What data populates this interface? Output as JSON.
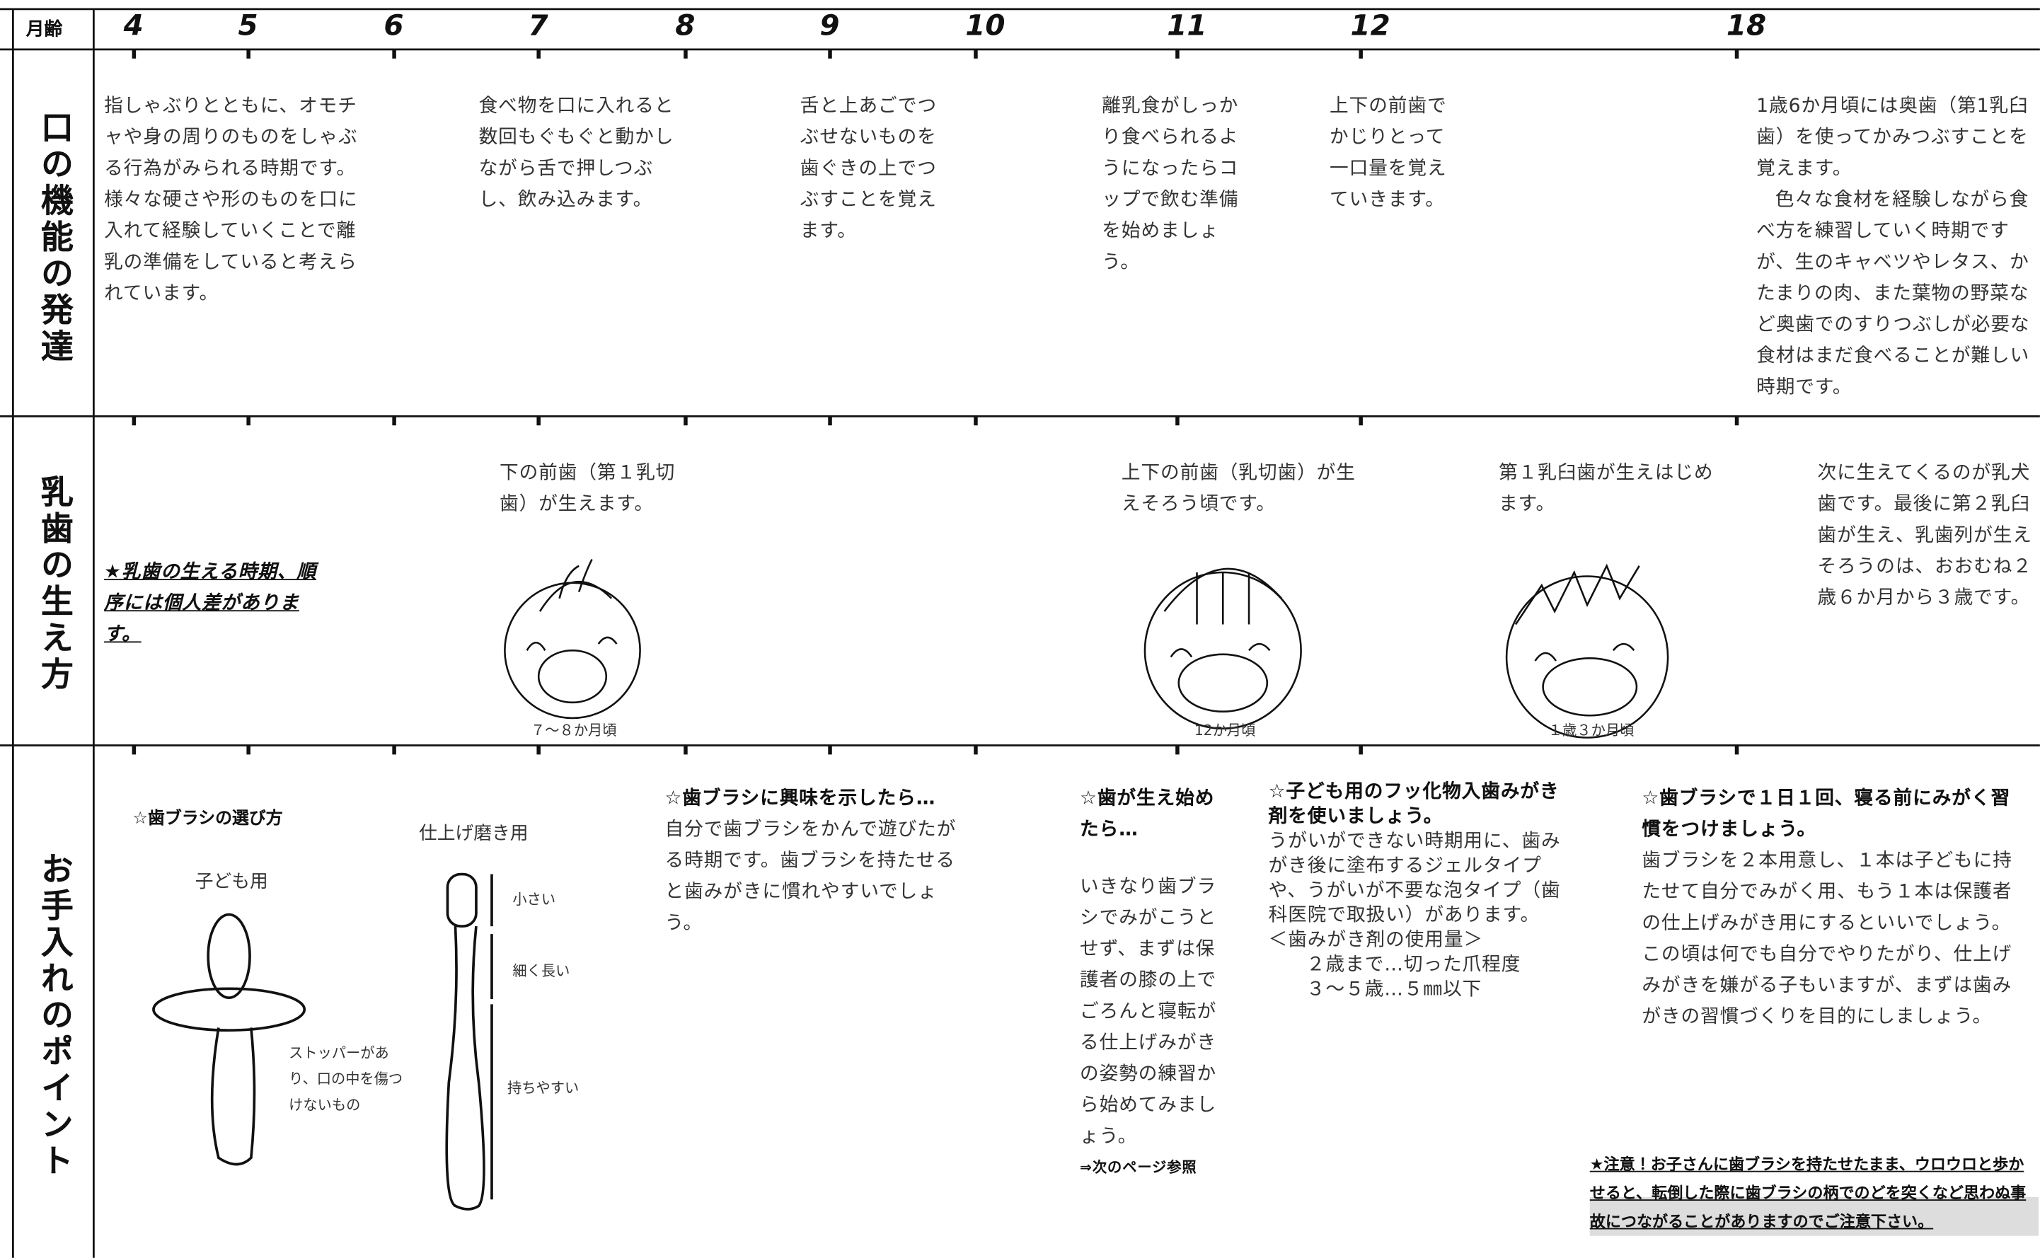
{
  "header": {
    "label": "月齢",
    "months": [
      "4",
      "5",
      "6",
      "7",
      "8",
      "9",
      "10",
      "11",
      "12",
      "18"
    ]
  },
  "rows": [
    {
      "title": "口の機能の発達",
      "cells": [
        "指しゃぶりとともに、オモチャや身の周りのものをしゃぶる行為がみられる時期です。様々な硬さや形のものを口に入れて経験していくことで離乳の準備をしていると考えられています。",
        "食べ物を口に入れると数回もぐもぐと動かしながら舌で押しつぶし、飲み込みます。",
        "舌と上あごでつぶせないものを歯ぐきの上でつぶすことを覚えます。",
        "離乳食がしっかり食べられるようになったらコップで飲む準備を始めましょう。",
        "上下の前歯でかじりとって一口量を覚えていきます。",
        [
          "1歳6か月頃には奥歯（第1乳臼歯）を使ってかみつぶすことを覚えます。",
          "色々な食材を経験しながら食べ方を練習していく時期ですが、生のキャベツやレタス、かたまりの肉、また葉物の野菜など奥歯でのすりつぶしが必要な食材はまだ食べることが難しい時期です。"
        ]
      ]
    },
    {
      "title": "乳歯の生え方",
      "note": "★乳歯の生える時期、順序には個人差があります。",
      "cells": [
        {
          "text": "下の前歯（第１乳切歯）が生えます。",
          "caption": "７～８か月頃"
        },
        {
          "text": "上下の前歯（乳切歯）が生えそろう頃です。",
          "caption": "12か月頃"
        },
        {
          "text": "第１乳臼歯が生えはじめます。",
          "caption": "１歳３か月頃"
        },
        {
          "text": "次に生えてくるのが乳犬歯です。最後に第２乳臼歯が生え、乳歯列が生えそろうのは、おおむね２歳６か月から３歳です。"
        }
      ]
    },
    {
      "title": "お手入れのポイント",
      "brush": {
        "heading": "☆歯ブラシの選び方",
        "child": "子ども用",
        "stopper": "ストッパーがあり、口の中を傷つけないもの",
        "finish": "仕上げ磨き用",
        "small": "小さい",
        "long": "細く長い",
        "grip": "持ちやすい"
      },
      "tips": [
        {
          "heading": "☆歯ブラシに興味を示したら…",
          "body": [
            "自分で歯ブラシをかんで遊びたがる時期です。歯ブラシを持たせると歯みがきに慣れやすいでしょう。"
          ]
        },
        {
          "heading": "☆歯が生え始めたら…",
          "body": [
            "いきなり歯ブラシでみがこうとせず、まずは保護者の膝の上でごろんと寝転がる仕上げみがきの姿勢の練習から始めてみましょう。"
          ],
          "note": "⇒次のページ参照"
        },
        {
          "heading": "☆子ども用のフッ化物入歯みがき剤を使いましょう。",
          "body": [
            "うがいができない時期用に、歯みがき後に塗布するジェルタイプや、うがいが不要な泡タイプ（歯科医院で取扱い）があります。",
            "＜歯みがき剤の使用量＞",
            "２歳まで…切った爪程度",
            "３～５歳…５㎜以下"
          ]
        },
        {
          "heading": "☆歯ブラシで１日１回、寝る前にみがく習慣をつけましょう。",
          "body": [
            "歯ブラシを２本用意し、１本は子どもに持たせて自分でみがく用、もう１本は保護者の仕上げみがき用にするといいでしょう。",
            "この頃は何でも自分でやりたがり、仕上げみがきを嫌がる子もいますが、まずは歯みがきの習慣づくりを目的にしましょう。"
          ]
        }
      ],
      "warning": "★注意！お子さんに歯ブラシを持たせたまま、ウロウロと歩かせると、転倒した際に歯ブラシの柄でのどを突くなど思わぬ事故につながることがありますのでご注意下さい。"
    }
  ]
}
